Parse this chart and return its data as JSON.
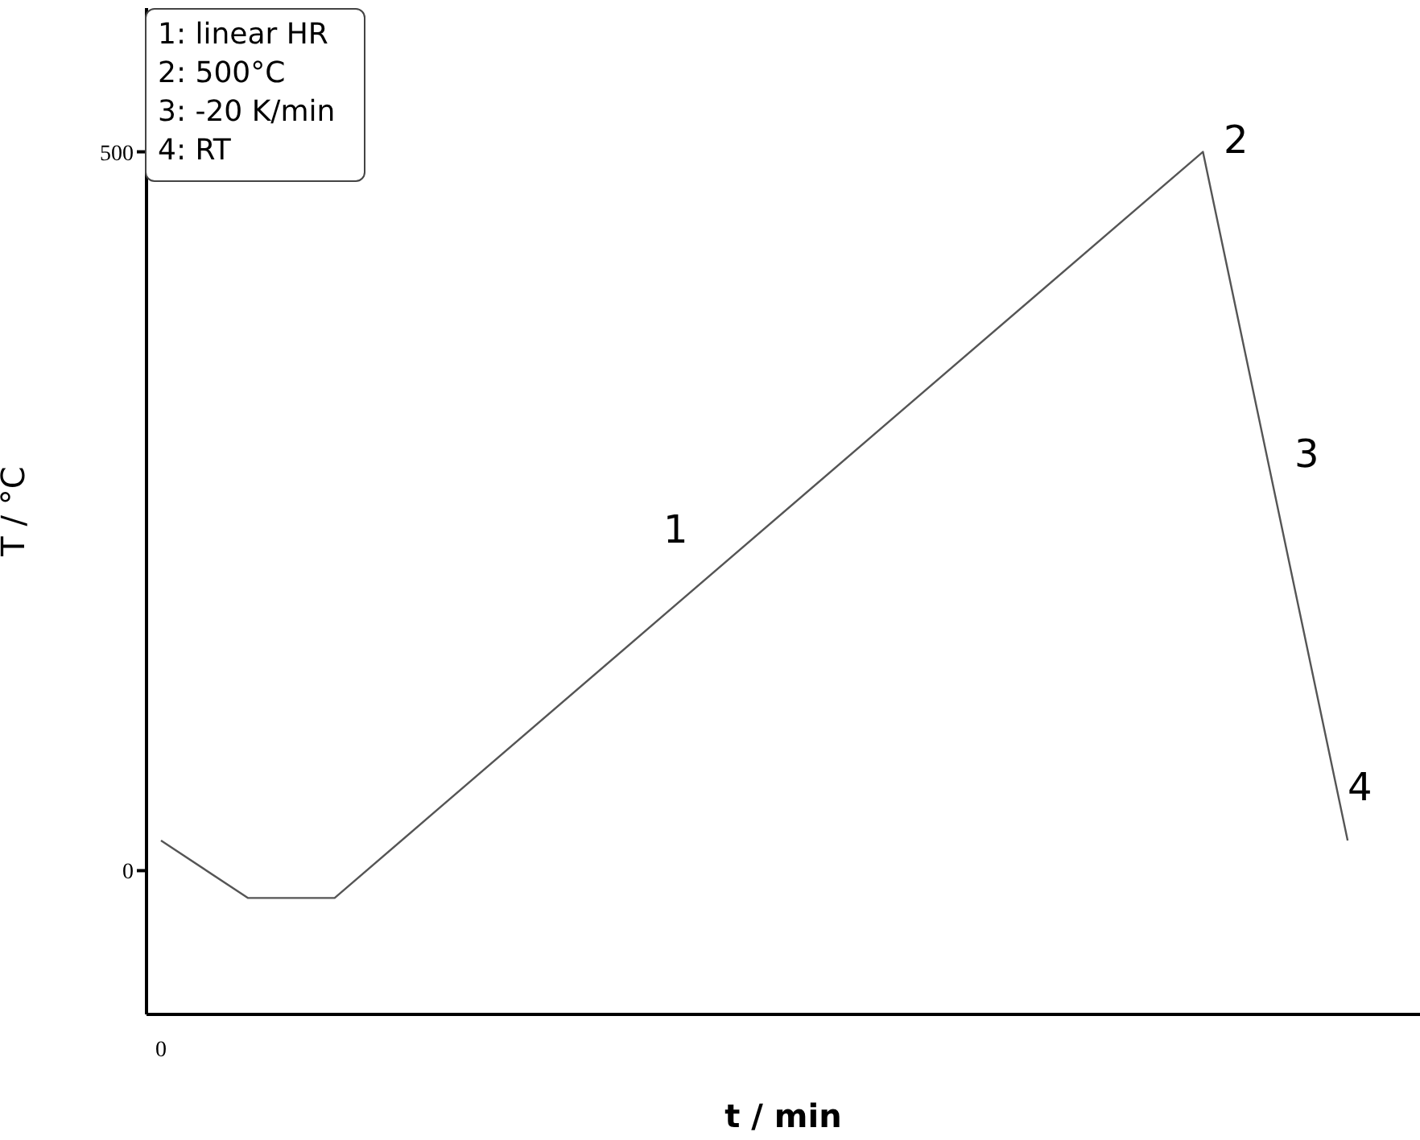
{
  "chart_data": {
    "type": "line",
    "xlabel": "t / min",
    "ylabel": "T / °C",
    "categories": [
      "0",
      null,
      null,
      null,
      null,
      null,
      null,
      null,
      null,
      null,
      null,
      null,
      null,
      null,
      null,
      null,
      null,
      null,
      null,
      null,
      null,
      null,
      null,
      null,
      null,
      null,
      null,
      null,
      null,
      null,
      null,
      null,
      null,
      null,
      null,
      null,
      null,
      null,
      null,
      null,
      null,
      null,
      null,
      null
    ],
    "series": [
      {
        "color": "#555555",
        "values": [
          21,
          null,
          null,
          -19,
          null,
          null,
          -19,
          null,
          null,
          null,
          null,
          null,
          null,
          null,
          null,
          null,
          null,
          null,
          null,
          null,
          null,
          null,
          null,
          null,
          null,
          null,
          null,
          null,
          null,
          null,
          null,
          null,
          null,
          null,
          null,
          null,
          500,
          null,
          null,
          null,
          null,
          21,
          null,
          null
        ]
      }
    ],
    "ylim": [
      -100,
      600
    ],
    "yticks": [
      0,
      500
    ],
    "grid": false,
    "legend": false,
    "marker": "none",
    "line_style": "solid",
    "annotations": [
      "1: linear HR",
      "2: 500°C",
      "3: -20 K/min",
      "4: RT",
      "1",
      "2",
      "3",
      "4"
    ]
  }
}
